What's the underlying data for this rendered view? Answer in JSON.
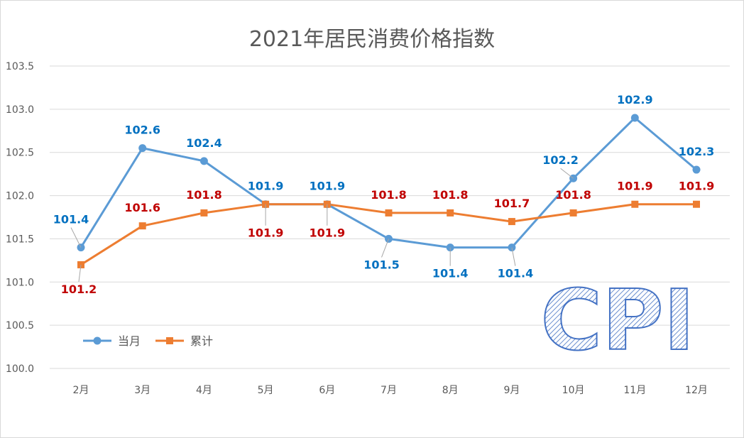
{
  "chart_data": {
    "type": "line",
    "title": "2021年居民消费价格指数",
    "categories": [
      "2月",
      "3月",
      "4月",
      "5月",
      "6月",
      "7月",
      "8月",
      "9月",
      "10月",
      "11月",
      "12月"
    ],
    "ylim": [
      100.0,
      103.5
    ],
    "yticks": [
      "100.0",
      "100.5",
      "101.0",
      "101.5",
      "102.0",
      "102.5",
      "103.0",
      "103.5"
    ],
    "grid": true,
    "legend_position": "bottom-left",
    "series": [
      {
        "name": "当月",
        "color": "#5b9bd5",
        "label_color": "#0070c0",
        "marker": "circle",
        "values": [
          101.4,
          102.55,
          102.4,
          101.9,
          101.9,
          101.5,
          101.4,
          101.4,
          102.2,
          102.9,
          102.3
        ],
        "labels": [
          "101.4",
          "102.6",
          "102.4",
          "101.9",
          "101.9",
          "101.5",
          "101.4",
          "101.4",
          "102.2",
          "102.9",
          "102.3"
        ]
      },
      {
        "name": "累计",
        "color": "#ed7d31",
        "label_color": "#c00000",
        "marker": "square",
        "values": [
          101.2,
          101.65,
          101.8,
          101.9,
          101.9,
          101.8,
          101.8,
          101.7,
          101.8,
          101.9,
          101.9
        ],
        "labels": [
          "101.2",
          "101.6",
          "101.8",
          "101.9",
          "101.9",
          "101.8",
          "101.8",
          "101.7",
          "101.8",
          "101.9",
          "101.9"
        ]
      }
    ],
    "watermark": "CPI"
  }
}
